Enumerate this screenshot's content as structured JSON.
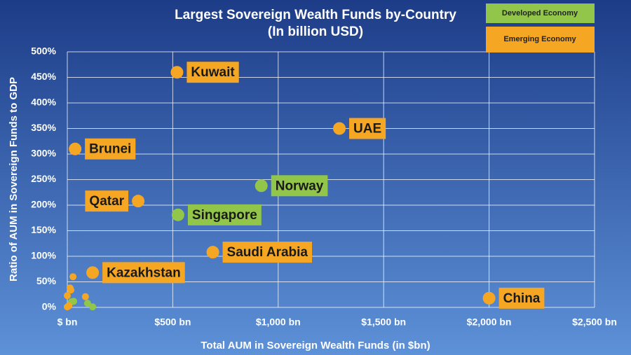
{
  "chart_data": {
    "type": "scatter",
    "title": "Largest Sovereign Wealth Funds by-Country",
    "subtitle": "(In billion USD)",
    "x_label": "Total AUM in Sovereign Wealth Funds (in $bn)",
    "y_label": "Ratio of AUM in Sovereign Funds to GDP",
    "xlim": [
      0,
      2500
    ],
    "xticks": [
      {
        "value": 0,
        "label": "$ bn"
      },
      {
        "value": 500,
        "label": "$500 bn"
      },
      {
        "value": 1000,
        "label": "$1,000 bn"
      },
      {
        "value": 1500,
        "label": "$1,500 bn"
      },
      {
        "value": 2000,
        "label": "$2,000 bn"
      },
      {
        "value": 2500,
        "label": "$2,500 bn"
      }
    ],
    "ylim": [
      0,
      500
    ],
    "yticks": [
      {
        "value": 0,
        "label": "0%"
      },
      {
        "value": 50,
        "label": "50%"
      },
      {
        "value": 100,
        "label": "100%"
      },
      {
        "value": 150,
        "label": "150%"
      },
      {
        "value": 200,
        "label": "200%"
      },
      {
        "value": 250,
        "label": "250%"
      },
      {
        "value": 300,
        "label": "300%"
      },
      {
        "value": 350,
        "label": "350%"
      },
      {
        "value": 400,
        "label": "400%"
      },
      {
        "value": 450,
        "label": "450%"
      },
      {
        "value": 500,
        "label": "500%"
      }
    ],
    "grid": true,
    "legend": "top-right",
    "series": [
      {
        "name": "Developed Economy",
        "color": "#92c64a",
        "x": [
          920,
          525,
          30,
          20,
          96,
          120
        ],
        "values": [
          238,
          181,
          12,
          11,
          8,
          1
        ],
        "labels": [
          "Norway",
          "Singapore",
          null,
          null,
          null,
          null
        ]
      },
      {
        "name": "Emerging Economy",
        "color": "#f5a623",
        "x": [
          520,
          1290,
          37,
          336,
          690,
          120,
          2000,
          27,
          13,
          17,
          0,
          86,
          7,
          0
        ],
        "values": [
          460,
          350,
          310,
          208,
          108,
          68,
          18,
          60,
          38,
          34,
          23,
          21,
          3,
          1
        ],
        "labels": [
          "Kuwait",
          "UAE",
          "Brunei",
          "Qatar",
          "Saudi Arabia",
          "Kazakhstan",
          "China",
          null,
          null,
          null,
          null,
          null,
          null,
          null
        ]
      }
    ]
  }
}
